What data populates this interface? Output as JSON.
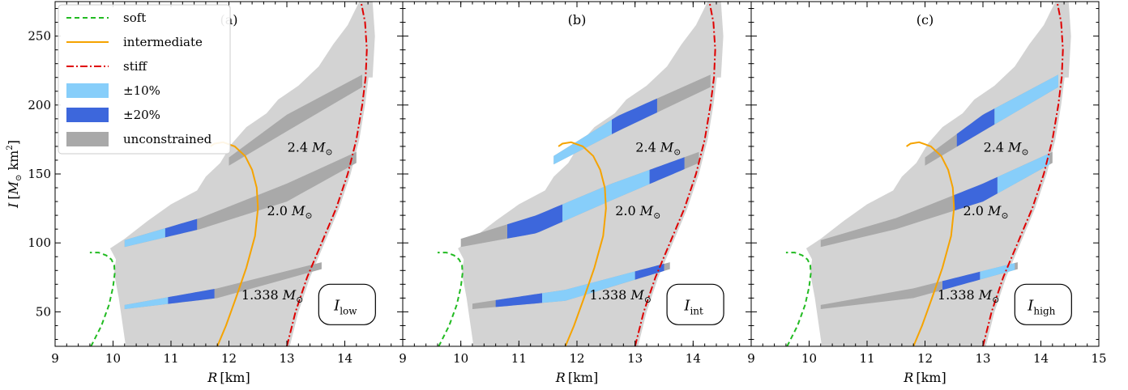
{
  "chart_data": [
    {
      "type": "area",
      "panel_label": "(a)",
      "box_label": "I",
      "box_label_sub": "low",
      "xlabel_main": "R",
      "xlabel_unit": "[km]",
      "ylabel_main": "I",
      "ylabel_unit_prefix": "[",
      "ylabel_unit_m": "M",
      "ylabel_unit_sun": "⊙",
      "ylabel_unit_km": " km",
      "ylabel_unit_sup": "2",
      "ylabel_unit_suffix": "]",
      "xlim": [
        9,
        15
      ],
      "ylim": [
        25,
        275
      ],
      "xticks": [
        "9",
        "10",
        "11",
        "12",
        "13",
        "14"
      ],
      "yticks": [
        "50",
        "100",
        "150",
        "200",
        "250"
      ],
      "show_ytick_labels": true,
      "mass_labels": [
        {
          "text": "2.4",
          "x": 13.4,
          "y": 166
        },
        {
          "text": "2.0",
          "x": 13.05,
          "y": 120
        },
        {
          "text": "1.338",
          "x": 12.75,
          "y": 59
        }
      ],
      "curves": {
        "soft": {
          "x": [
            9.62,
            9.8,
            9.93,
            10.0,
            10.03,
            10.02,
            9.97,
            9.88,
            9.75,
            9.6
          ],
          "y": [
            25,
            40,
            55,
            68,
            78,
            84,
            88,
            91,
            93,
            93
          ]
        },
        "intermediate": {
          "x": [
            11.8,
            11.95,
            12.12,
            12.3,
            12.45,
            12.5,
            12.48,
            12.4,
            12.28,
            12.1,
            11.9,
            11.75,
            11.68
          ],
          "y": [
            25,
            40,
            60,
            82,
            105,
            125,
            140,
            153,
            163,
            170,
            173,
            172,
            170
          ]
        },
        "stiff": {
          "x": [
            13.0,
            13.15,
            13.35,
            13.6,
            13.85,
            14.05,
            14.2,
            14.3,
            14.36,
            14.38,
            14.35,
            14.28
          ],
          "y": [
            25,
            50,
            75,
            100,
            125,
            150,
            175,
            200,
            220,
            240,
            260,
            275
          ]
        }
      },
      "bands": {
        "m24": {
          "upper": [
            [
              12.0,
              162
            ],
            [
              13.0,
              193
            ],
            [
              14.3,
              222
            ]
          ],
          "lower": [
            [
              12.0,
              156
            ],
            [
              13.0,
              181
            ],
            [
              14.3,
              213
            ]
          ]
        },
        "m20": {
          "upper": [
            [
              10.2,
              102
            ],
            [
              11.5,
              118
            ],
            [
              13.0,
              143
            ],
            [
              14.2,
              166
            ]
          ],
          "lower": [
            [
              10.2,
              97
            ],
            [
              11.5,
              110
            ],
            [
              13.0,
              130
            ],
            [
              14.2,
              158
            ]
          ]
        },
        "m1338": {
          "upper": [
            [
              10.2,
              55
            ],
            [
              11.8,
              67
            ],
            [
              13.6,
              86
            ]
          ],
          "lower": [
            [
              10.2,
              52
            ],
            [
              11.8,
              60
            ],
            [
              13.6,
              81
            ]
          ]
        }
      },
      "constrained_regions": [
        {
          "band": "m20",
          "x": [
            10.2,
            10.9
          ],
          "level": "10"
        },
        {
          "band": "m20",
          "x": [
            10.9,
            11.45
          ],
          "level": "20"
        },
        {
          "band": "m1338",
          "x": [
            10.2,
            10.95
          ],
          "level": "10"
        },
        {
          "band": "m1338",
          "x": [
            10.95,
            11.75
          ],
          "level": "20"
        }
      ]
    },
    {
      "type": "area",
      "panel_label": "(b)",
      "box_label": "I",
      "box_label_sub": "int",
      "xlabel_main": "R",
      "xlabel_unit": "[km]",
      "xlim": [
        9,
        15
      ],
      "ylim": [
        25,
        275
      ],
      "xticks": [
        "9",
        "10",
        "11",
        "12",
        "13",
        "14"
      ],
      "show_ytick_labels": false,
      "mass_labels": [
        {
          "text": "2.4",
          "x": 13.4,
          "y": 166
        },
        {
          "text": "2.0",
          "x": 13.05,
          "y": 120
        },
        {
          "text": "1.338",
          "x": 12.75,
          "y": 59
        }
      ],
      "curves": {
        "soft": {
          "x": [
            9.62,
            9.8,
            9.93,
            10.0,
            10.03,
            10.02,
            9.97,
            9.88,
            9.75,
            9.6
          ],
          "y": [
            25,
            40,
            55,
            68,
            78,
            84,
            88,
            91,
            93,
            93
          ]
        },
        "intermediate": {
          "x": [
            11.8,
            11.95,
            12.12,
            12.3,
            12.45,
            12.5,
            12.48,
            12.4,
            12.28,
            12.1,
            11.9,
            11.75,
            11.68
          ],
          "y": [
            25,
            40,
            60,
            82,
            105,
            125,
            140,
            153,
            163,
            170,
            173,
            172,
            170
          ]
        },
        "stiff": {
          "x": [
            13.0,
            13.15,
            13.35,
            13.6,
            13.85,
            14.05,
            14.2,
            14.3,
            14.36,
            14.38,
            14.35,
            14.28
          ],
          "y": [
            25,
            50,
            75,
            100,
            125,
            150,
            175,
            200,
            220,
            240,
            260,
            275
          ]
        }
      },
      "bands": {
        "m24": {
          "upper": [
            [
              11.6,
              163
            ],
            [
              12.7,
              192
            ],
            [
              14.3,
              222
            ]
          ],
          "lower": [
            [
              11.6,
              157
            ],
            [
              12.7,
              181
            ],
            [
              14.3,
              213
            ]
          ]
        },
        "m20": {
          "upper": [
            [
              10.0,
              103
            ],
            [
              11.3,
              120
            ],
            [
              12.6,
              143
            ],
            [
              14.1,
              166
            ]
          ],
          "lower": [
            [
              10.0,
              97
            ],
            [
              11.3,
              107
            ],
            [
              12.6,
              131
            ],
            [
              14.1,
              158
            ]
          ]
        },
        "m1338": {
          "upper": [
            [
              10.2,
              56
            ],
            [
              11.8,
              66
            ],
            [
              13.6,
              86
            ]
          ],
          "lower": [
            [
              10.2,
              52
            ],
            [
              11.8,
              58
            ],
            [
              13.6,
              81
            ]
          ]
        }
      },
      "constrained_regions": [
        {
          "band": "m24",
          "x": [
            11.6,
            12.6
          ],
          "level": "10"
        },
        {
          "band": "m24",
          "x": [
            12.6,
            13.38
          ],
          "level": "20"
        },
        {
          "band": "m20",
          "x": [
            10.8,
            11.75
          ],
          "level": "20"
        },
        {
          "band": "m20",
          "x": [
            11.75,
            13.25
          ],
          "level": "10"
        },
        {
          "band": "m20",
          "x": [
            13.25,
            13.85
          ],
          "level": "20"
        },
        {
          "band": "m1338",
          "x": [
            10.6,
            11.4
          ],
          "level": "20"
        },
        {
          "band": "m1338",
          "x": [
            11.4,
            13.0
          ],
          "level": "10"
        },
        {
          "band": "m1338",
          "x": [
            13.0,
            13.5
          ],
          "level": "20"
        }
      ]
    },
    {
      "type": "area",
      "panel_label": "(c)",
      "box_label": "I",
      "box_label_sub": "high",
      "xlabel_main": "R",
      "xlabel_unit": "[km]",
      "xlim": [
        9,
        15
      ],
      "ylim": [
        25,
        275
      ],
      "xticks": [
        "9",
        "10",
        "11",
        "12",
        "13",
        "14",
        "15"
      ],
      "show_ytick_labels": false,
      "mass_labels": [
        {
          "text": "2.4",
          "x": 13.4,
          "y": 166
        },
        {
          "text": "2.0",
          "x": 13.05,
          "y": 120
        },
        {
          "text": "1.338",
          "x": 12.75,
          "y": 59
        }
      ],
      "curves": {
        "soft": {
          "x": [
            9.62,
            9.8,
            9.93,
            10.0,
            10.03,
            10.02,
            9.97,
            9.88,
            9.75,
            9.6
          ],
          "y": [
            25,
            40,
            55,
            68,
            78,
            84,
            88,
            91,
            93,
            93
          ]
        },
        "intermediate": {
          "x": [
            11.8,
            11.95,
            12.12,
            12.3,
            12.45,
            12.5,
            12.48,
            12.4,
            12.28,
            12.1,
            11.9,
            11.75,
            11.68
          ],
          "y": [
            25,
            40,
            60,
            82,
            105,
            125,
            140,
            153,
            163,
            170,
            173,
            172,
            170
          ]
        },
        "stiff": {
          "x": [
            13.0,
            13.15,
            13.35,
            13.6,
            13.85,
            14.05,
            14.2,
            14.3,
            14.36,
            14.38,
            14.35,
            14.28
          ],
          "y": [
            25,
            50,
            75,
            100,
            125,
            150,
            175,
            200,
            220,
            240,
            260,
            275
          ]
        }
      },
      "bands": {
        "m24": {
          "upper": [
            [
              12.0,
              162
            ],
            [
              13.0,
              193
            ],
            [
              14.3,
              222
            ]
          ],
          "lower": [
            [
              12.0,
              156
            ],
            [
              13.0,
              181
            ],
            [
              14.3,
              213
            ]
          ]
        },
        "m20": {
          "upper": [
            [
              10.2,
              102
            ],
            [
              11.5,
              118
            ],
            [
              13.0,
              143
            ],
            [
              14.2,
              166
            ]
          ],
          "lower": [
            [
              10.2,
              97
            ],
            [
              11.5,
              110
            ],
            [
              13.0,
              130
            ],
            [
              14.2,
              158
            ]
          ]
        },
        "m1338": {
          "upper": [
            [
              10.2,
              55
            ],
            [
              11.8,
              67
            ],
            [
              13.6,
              86
            ]
          ],
          "lower": [
            [
              10.2,
              52
            ],
            [
              11.8,
              60
            ],
            [
              13.6,
              81
            ]
          ]
        }
      },
      "constrained_regions": [
        {
          "band": "m24",
          "x": [
            12.55,
            13.2
          ],
          "level": "20"
        },
        {
          "band": "m24",
          "x": [
            13.2,
            14.3
          ],
          "level": "10"
        },
        {
          "band": "m20",
          "x": [
            12.5,
            13.25
          ],
          "level": "20"
        },
        {
          "band": "m20",
          "x": [
            13.25,
            14.15
          ],
          "level": "10"
        },
        {
          "band": "m1338",
          "x": [
            12.3,
            12.95
          ],
          "level": "20"
        },
        {
          "band": "m1338",
          "x": [
            12.95,
            13.55
          ],
          "level": "10"
        }
      ]
    }
  ],
  "legend": {
    "placement": "upper-left of panel (a)",
    "items": [
      {
        "key": "soft",
        "label": "soft",
        "kind": "line",
        "color": "#22bb22",
        "dash": "6,4"
      },
      {
        "key": "intermediate",
        "label": "intermediate",
        "kind": "line",
        "color": "#f5a300",
        "dash": ""
      },
      {
        "key": "stiff",
        "label": "stiff",
        "kind": "line",
        "color": "#e00000",
        "dash": "9,3,2,3"
      },
      {
        "key": "p10",
        "label": "±10%",
        "kind": "patch",
        "color": "#87cefa"
      },
      {
        "key": "p20",
        "label": "±20%",
        "kind": "patch",
        "color": "#3d67dc"
      },
      {
        "key": "unc",
        "label": "unconstrained",
        "kind": "patch",
        "color": "#a9a9a9"
      }
    ]
  },
  "mass_unit": {
    "m": "M",
    "sun": "⊙"
  },
  "colors": {
    "background_region": "#d3d3d3",
    "unconstrained": "#a9a9a9",
    "p10": "#87cefa",
    "p20": "#3d67dc",
    "soft": "#22bb22",
    "intermediate": "#f5a300",
    "stiff": "#e00000"
  }
}
